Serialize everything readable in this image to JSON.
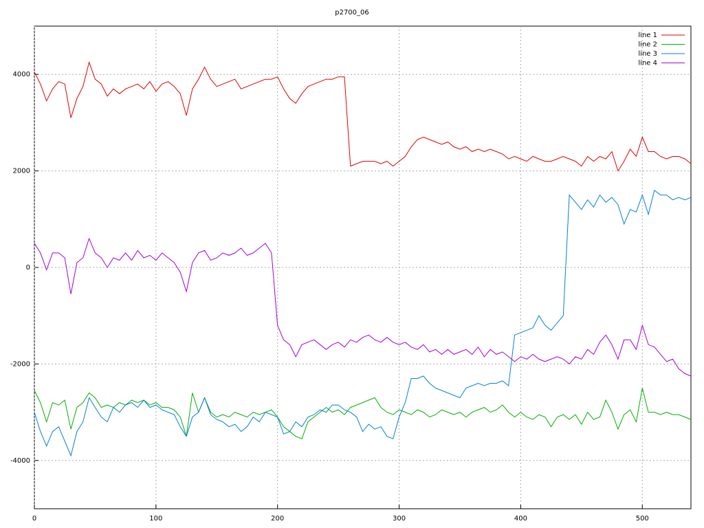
{
  "chart_data": {
    "type": "line",
    "title": "p2700_06",
    "x": [
      0,
      5,
      10,
      15,
      20,
      25,
      30,
      35,
      40,
      45,
      50,
      55,
      60,
      65,
      70,
      75,
      80,
      85,
      90,
      95,
      100,
      105,
      110,
      115,
      120,
      125,
      130,
      135,
      140,
      145,
      150,
      155,
      160,
      165,
      170,
      175,
      180,
      185,
      190,
      195,
      200,
      205,
      210,
      215,
      220,
      225,
      230,
      235,
      240,
      245,
      250,
      255,
      260,
      265,
      270,
      275,
      280,
      285,
      290,
      295,
      300,
      305,
      310,
      315,
      320,
      325,
      330,
      335,
      340,
      345,
      350,
      355,
      360,
      365,
      370,
      375,
      380,
      385,
      390,
      395,
      400,
      405,
      410,
      415,
      420,
      425,
      430,
      435,
      440,
      445,
      450,
      455,
      460,
      465,
      470,
      475,
      480,
      485,
      490,
      495,
      500,
      505,
      510,
      515,
      520,
      525,
      530,
      535,
      540
    ],
    "series": [
      {
        "name": "line 1",
        "color": "#e00000",
        "values": [
          4050,
          3800,
          3450,
          3700,
          3850,
          3800,
          3100,
          3500,
          3750,
          4250,
          3900,
          3800,
          3550,
          3700,
          3600,
          3700,
          3750,
          3800,
          3700,
          3850,
          3650,
          3800,
          3850,
          3750,
          3600,
          3150,
          3700,
          3900,
          4150,
          3900,
          3750,
          3800,
          3850,
          3900,
          3700,
          3750,
          3800,
          3850,
          3900,
          3900,
          3950,
          3700,
          3500,
          3400,
          3600,
          3750,
          3800,
          3850,
          3900,
          3900,
          3950,
          3950,
          2100,
          2150,
          2200,
          2200,
          2200,
          2150,
          2200,
          2100,
          2200,
          2300,
          2500,
          2650,
          2700,
          2650,
          2600,
          2550,
          2600,
          2500,
          2450,
          2500,
          2400,
          2450,
          2400,
          2450,
          2400,
          2350,
          2250,
          2300,
          2250,
          2200,
          2300,
          2250,
          2200,
          2200,
          2250,
          2300,
          2250,
          2200,
          2100,
          2300,
          2200,
          2300,
          2250,
          2400,
          2000,
          2200,
          2450,
          2300,
          2700,
          2400,
          2400,
          2300,
          2250,
          2300,
          2300,
          2250,
          2150
        ]
      },
      {
        "name": "line 2",
        "color": "#00b000",
        "values": [
          -2550,
          -2800,
          -3200,
          -2800,
          -2850,
          -2750,
          -3350,
          -2900,
          -2800,
          -2600,
          -2700,
          -2900,
          -2850,
          -2900,
          -2800,
          -2850,
          -2750,
          -2800,
          -2750,
          -2850,
          -2800,
          -2900,
          -2900,
          -2950,
          -3100,
          -3500,
          -2600,
          -3000,
          -2700,
          -3000,
          -3100,
          -3050,
          -3100,
          -3000,
          -3050,
          -3100,
          -3000,
          -3050,
          -3000,
          -2950,
          -3100,
          -3300,
          -3400,
          -3500,
          -3550,
          -3200,
          -3100,
          -3000,
          -2900,
          -3000,
          -2950,
          -3050,
          -2900,
          -2850,
          -2800,
          -2750,
          -2700,
          -2900,
          -3000,
          -3050,
          -2950,
          -3000,
          -3050,
          -2950,
          -3000,
          -3100,
          -3050,
          -2950,
          -3000,
          -3050,
          -3000,
          -3100,
          -3000,
          -2950,
          -2900,
          -3000,
          -2950,
          -2850,
          -3000,
          -3100,
          -3000,
          -3100,
          -3150,
          -3050,
          -3100,
          -3300,
          -3100,
          -3050,
          -3150,
          -3050,
          -3250,
          -3000,
          -3150,
          -3100,
          -2750,
          -3000,
          -3350,
          -3050,
          -2950,
          -3200,
          -2500,
          -3000,
          -3000,
          -3050,
          -3000,
          -3050,
          -3050,
          -3100,
          -3150
        ]
      },
      {
        "name": "line 3",
        "color": "#0080e0",
        "values": [
          -3000,
          -3400,
          -3700,
          -3400,
          -3300,
          -3600,
          -3900,
          -3400,
          -3200,
          -2700,
          -2900,
          -3100,
          -3200,
          -2900,
          -3000,
          -2850,
          -2800,
          -2900,
          -2750,
          -2900,
          -2850,
          -2950,
          -3000,
          -3050,
          -3300,
          -3500,
          -3100,
          -3000,
          -2700,
          -3050,
          -3150,
          -3200,
          -3300,
          -3250,
          -3400,
          -3300,
          -3100,
          -3200,
          -3000,
          -3050,
          -3100,
          -3450,
          -3400,
          -3200,
          -3300,
          -3100,
          -3050,
          -2950,
          -3000,
          -2850,
          -2850,
          -2950,
          -3000,
          -3100,
          -3400,
          -3250,
          -3350,
          -3300,
          -3500,
          -3550,
          -3100,
          -2800,
          -2300,
          -2300,
          -2250,
          -2400,
          -2500,
          -2550,
          -2600,
          -2650,
          -2700,
          -2500,
          -2450,
          -2400,
          -2450,
          -2400,
          -2400,
          -2350,
          -2450,
          -1400,
          -1350,
          -1300,
          -1250,
          -1000,
          -1200,
          -1300,
          -1150,
          -1000,
          1500,
          1350,
          1200,
          1400,
          1250,
          1500,
          1350,
          1450,
          1300,
          900,
          1200,
          1150,
          1500,
          1100,
          1600,
          1500,
          1500,
          1400,
          1450,
          1400,
          1450
        ]
      },
      {
        "name": "line 4",
        "color": "#a000e0",
        "values": [
          500,
          300,
          -50,
          300,
          300,
          200,
          -550,
          100,
          200,
          600,
          300,
          200,
          0,
          200,
          150,
          300,
          150,
          350,
          200,
          250,
          150,
          300,
          200,
          100,
          -100,
          -500,
          100,
          300,
          350,
          150,
          200,
          300,
          250,
          300,
          400,
          250,
          300,
          400,
          500,
          300,
          -1200,
          -1500,
          -1600,
          -1850,
          -1600,
          -1550,
          -1500,
          -1600,
          -1700,
          -1600,
          -1550,
          -1650,
          -1500,
          -1550,
          -1450,
          -1400,
          -1500,
          -1550,
          -1450,
          -1550,
          -1600,
          -1550,
          -1650,
          -1700,
          -1600,
          -1750,
          -1700,
          -1800,
          -1700,
          -1800,
          -1750,
          -1700,
          -1800,
          -1650,
          -1850,
          -1700,
          -1800,
          -1750,
          -1850,
          -1950,
          -1850,
          -1900,
          -1800,
          -1900,
          -1950,
          -1900,
          -1850,
          -1900,
          -2000,
          -1850,
          -1900,
          -1700,
          -1800,
          -1550,
          -1400,
          -1600,
          -1900,
          -1500,
          -1500,
          -1700,
          -1200,
          -1600,
          -1650,
          -1800,
          -1950,
          -1900,
          -2100,
          -2200,
          -2250
        ]
      }
    ],
    "xlim": [
      0,
      540
    ],
    "ylim": [
      -5000,
      5000
    ],
    "xticks": [
      0,
      100,
      200,
      300,
      400,
      500
    ],
    "yticks": [
      -4000,
      -2000,
      0,
      2000,
      4000
    ],
    "grid": true,
    "legend": "top-right"
  }
}
